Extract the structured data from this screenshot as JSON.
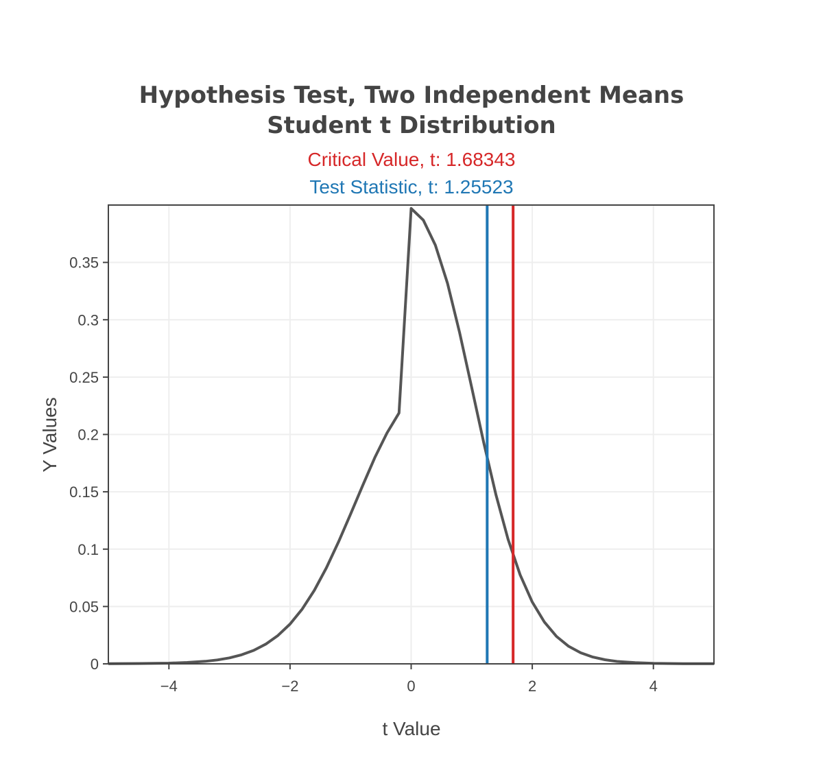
{
  "chart_data": {
    "type": "line",
    "title_lines": [
      "Hypothesis Test, Two Independent Means",
      "Student t Distribution"
    ],
    "annotations": [
      {
        "text": "Critical Value, t: 1.68343",
        "color": "#d62728"
      },
      {
        "text": "Test Statistic, t: 1.25523",
        "color": "#1f77b4"
      }
    ],
    "xlabel": "t Value",
    "ylabel": "Y Values",
    "xlim": [
      -5,
      5
    ],
    "ylim": [
      0,
      0.4
    ],
    "x_ticks": [
      -4,
      -2,
      0,
      2,
      4
    ],
    "x_tick_labels": [
      "−4",
      "−2",
      "0",
      "2",
      "4"
    ],
    "y_ticks": [
      0,
      0.05,
      0.1,
      0.15,
      0.2,
      0.25,
      0.3,
      0.35
    ],
    "y_tick_labels": [
      "0",
      "0.05",
      "0.1",
      "0.15",
      "0.2",
      "0.25",
      "0.3",
      "0.35"
    ],
    "grid": true,
    "series": [
      {
        "color": "#555555",
        "x": [
          -5,
          -4.5,
          -4,
          -3.7,
          -3.4,
          -3.2,
          -3.0,
          -2.8,
          -2.6,
          -2.4,
          -2.2,
          -2.0,
          -1.8,
          -1.6,
          -1.4,
          -1.2,
          -1.0,
          -0.8,
          -0.6,
          -0.4,
          -0.2,
          0,
          0.2,
          0.4,
          0.6,
          0.8,
          1.0,
          1.2,
          1.4,
          1.6,
          1.8,
          2.0,
          2.2,
          2.4,
          2.6,
          2.8,
          3.0,
          3.2,
          3.4,
          3.7,
          4.0,
          4.5,
          5.0
        ],
        "y": [
          0.0001,
          0.0003,
          0.0006,
          0.0012,
          0.0022,
          0.0034,
          0.0052,
          0.0079,
          0.0117,
          0.0172,
          0.0247,
          0.0347,
          0.0477,
          0.064,
          0.0837,
          0.1062,
          0.1306,
          0.1556,
          0.1798,
          0.2012,
          0.2187,
          0.397,
          0.3869,
          0.365,
          0.3318,
          0.2889,
          0.2409,
          0.1924,
          0.1475,
          0.1086,
          0.0776,
          0.0539,
          0.0364,
          0.0239,
          0.0153,
          0.0096,
          0.0059,
          0.0036,
          0.0021,
          0.001,
          0.0005,
          0.0002,
          0.0001
        ]
      }
    ],
    "vertical_lines": [
      {
        "x": 1.68343,
        "color": "#d62728"
      },
      {
        "x": 1.25523,
        "color": "#1f77b4"
      }
    ]
  }
}
